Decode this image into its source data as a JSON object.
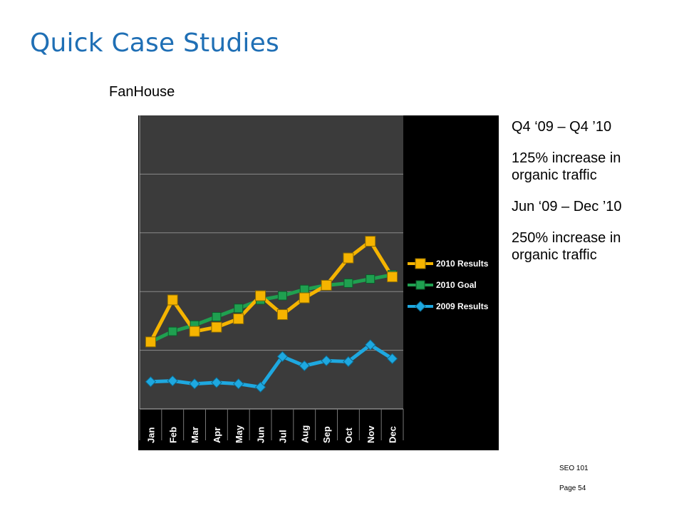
{
  "slide": {
    "title": "Quick Case Studies",
    "subtitle": "FanHouse",
    "notes": [
      "Q4 ‘09 – Q4 ’10",
      "125% increase in organic traffic",
      "Jun ‘09 – Dec ’10",
      "250% increase in organic traffic"
    ],
    "footer_line1": "SEO 101",
    "footer_line2": "Page 54"
  },
  "chart_data": {
    "type": "line",
    "categories": [
      "Jan",
      "Feb",
      "Mar",
      "Apr",
      "May",
      "Jun",
      "Jul",
      "Aug",
      "Sep",
      "Oct",
      "Nov",
      "Dec"
    ],
    "ylim": [
      0,
      7
    ],
    "grid": true,
    "legend_position": "right",
    "series": [
      {
        "name": "2010 Results",
        "color": "#f5b400",
        "marker": "square",
        "values": [
          1.6,
          2.6,
          1.85,
          1.95,
          2.15,
          2.7,
          2.25,
          2.65,
          2.95,
          3.6,
          4.0,
          3.15
        ]
      },
      {
        "name": "2010 Goal",
        "color": "#1fa050",
        "marker": "x",
        "values": [
          1.6,
          1.85,
          2.0,
          2.2,
          2.4,
          2.6,
          2.7,
          2.85,
          2.95,
          3.0,
          3.1,
          3.2
        ]
      },
      {
        "name": "2009 Results",
        "color": "#1ea8e0",
        "marker": "diamond",
        "values": [
          0.65,
          0.67,
          0.6,
          0.63,
          0.6,
          0.52,
          1.25,
          1.03,
          1.15,
          1.13,
          1.53,
          1.2
        ]
      }
    ]
  }
}
